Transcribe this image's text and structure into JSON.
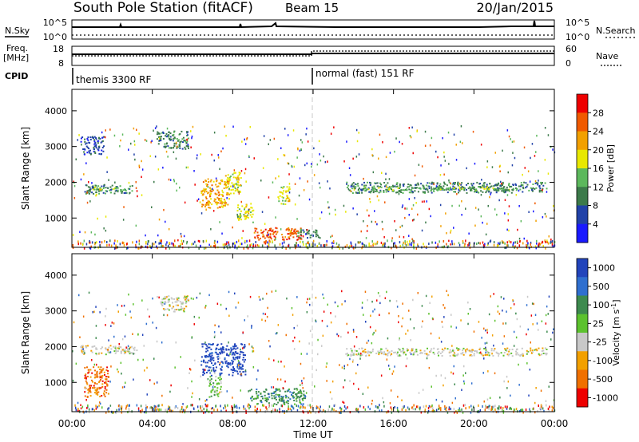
{
  "header": {
    "station": "South Pole Station (fitACF)",
    "beam": "Beam 15",
    "date": "20/Jan/2015"
  },
  "top_panels": {
    "nsky_label": "N.Sky",
    "nsky_ticks": [
      "10^5",
      "10^0"
    ],
    "nsearch_label": "N.Search",
    "nsearch_ticks": [
      "10^5",
      "10^0"
    ],
    "freq_label": "Freq.",
    "freq_unit": "[MHz]",
    "freq_ticks": [
      "18",
      "8"
    ],
    "nave_label": "Nave",
    "nave_ticks": [
      "60",
      "0"
    ],
    "cpid_label": "CPID",
    "cpid_segments": [
      {
        "label": "themis 3300 RF",
        "start_hour": 0
      },
      {
        "label": "normal (fast) 151 RF",
        "start_hour": 12
      }
    ]
  },
  "chart_data": [
    {
      "type": "heatmap",
      "name": "power",
      "ylabel": "Slant Range [km]",
      "xlabel": "Time UT",
      "x_ticks": [
        "00:00",
        "04:00",
        "08:00",
        "12:00",
        "16:00",
        "20:00",
        "00:00"
      ],
      "xlim_hours": [
        0,
        24
      ],
      "y_ticks": [
        1000,
        2000,
        3000,
        4000
      ],
      "ylim": [
        180,
        4600
      ],
      "colorbar": {
        "label": "Power [dB]",
        "ticks": [
          4,
          8,
          12,
          16,
          20,
          24,
          28
        ],
        "range": [
          0,
          32
        ],
        "colors": [
          "#1a1aff",
          "#2142a8",
          "#3c7a4a",
          "#5cb85c",
          "#e8e800",
          "#f2a000",
          "#f05a00",
          "#ee0000"
        ]
      },
      "regions": [
        {
          "t0": 0.6,
          "t1": 3.0,
          "r0": 1700,
          "r1": 1950,
          "v": 9
        },
        {
          "t0": 1.0,
          "t1": 2.8,
          "r0": 1780,
          "r1": 1880,
          "v": 15
        },
        {
          "t0": 0.4,
          "t1": 1.6,
          "r0": 2800,
          "r1": 3300,
          "v": 7
        },
        {
          "t0": 4.2,
          "t1": 5.8,
          "r0": 2950,
          "r1": 3450,
          "v": 11
        },
        {
          "t0": 6.4,
          "t1": 7.8,
          "r0": 1300,
          "r1": 2100,
          "v": 21
        },
        {
          "t0": 7.6,
          "t1": 8.4,
          "r0": 1700,
          "r1": 2300,
          "v": 17
        },
        {
          "t0": 8.2,
          "t1": 9.0,
          "r0": 900,
          "r1": 1400,
          "v": 19
        },
        {
          "t0": 9.0,
          "t1": 11.4,
          "r0": 400,
          "r1": 750,
          "v": 27
        },
        {
          "t0": 10.2,
          "t1": 10.8,
          "r0": 1400,
          "r1": 1900,
          "v": 19
        },
        {
          "t0": 11.2,
          "t1": 12.4,
          "r0": 450,
          "r1": 700,
          "v": 10
        },
        {
          "t0": 13.6,
          "t1": 23.6,
          "r0": 1720,
          "r1": 2020,
          "v": 9
        },
        {
          "t0": 14.4,
          "t1": 22.4,
          "r0": 1800,
          "r1": 1900,
          "v": 14
        }
      ]
    },
    {
      "type": "heatmap",
      "name": "velocity",
      "ylabel": "Slant Range [km]",
      "xlabel": "Time UT",
      "x_ticks": [
        "00:00",
        "04:00",
        "08:00",
        "12:00",
        "16:00",
        "20:00",
        "00:00"
      ],
      "xlim_hours": [
        0,
        24
      ],
      "y_ticks": [
        1000,
        2000,
        3000,
        4000
      ],
      "ylim": [
        180,
        4600
      ],
      "colorbar": {
        "label": "Velocity [m s^-1]",
        "ticks": [
          "1000",
          "500",
          "100",
          "25",
          "-25",
          "-100",
          "-500",
          "-1000"
        ],
        "colors": [
          "#2244bb",
          "#2f6fcf",
          "#3d8a4e",
          "#5cc22e",
          "#c8c8c8",
          "#f2a000",
          "#f07000",
          "#ee0000"
        ]
      },
      "regions": [
        {
          "t0": 0.4,
          "t1": 3.2,
          "r0": 1800,
          "r1": 2050,
          "v": 4
        },
        {
          "t0": 0.6,
          "t1": 1.8,
          "r0": 600,
          "r1": 1450,
          "v": 6
        },
        {
          "t0": 4.4,
          "t1": 5.8,
          "r0": 3000,
          "r1": 3450,
          "v": 4
        },
        {
          "t0": 6.4,
          "t1": 8.6,
          "r0": 1200,
          "r1": 2100,
          "v": 0
        },
        {
          "t0": 6.8,
          "t1": 7.4,
          "r0": 600,
          "r1": 1200,
          "v": 3
        },
        {
          "t0": 8.8,
          "t1": 11.6,
          "r0": 400,
          "r1": 850,
          "v": 2
        },
        {
          "t0": 13.6,
          "t1": 23.6,
          "r0": 1760,
          "r1": 1980,
          "v": 4
        }
      ]
    }
  ],
  "colors": {
    "dashed_marker": "#c8c8c8"
  }
}
